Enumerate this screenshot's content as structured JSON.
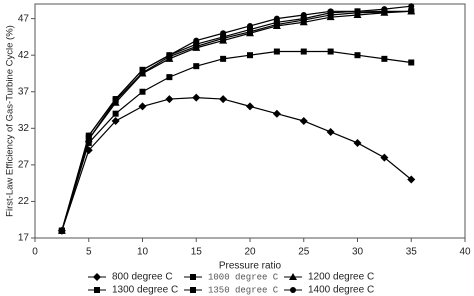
{
  "chart_data": {
    "type": "line",
    "x_label": "Pressure ratio",
    "y_label": "First-Law Efficiency of Gas-Turbine Cycle (%)",
    "x": [
      2.5,
      5,
      7.5,
      10,
      12.5,
      15,
      17.5,
      20,
      22.5,
      25,
      27.5,
      30,
      32.5,
      35
    ],
    "series": [
      {
        "name": "800 degree C",
        "color": "#000000",
        "marker": "diamond",
        "values": [
          18,
          29,
          33,
          35,
          36,
          36.2,
          36,
          35,
          34,
          33,
          31.5,
          30,
          28,
          25
        ]
      },
      {
        "name": "1000 degree C",
        "color": "#000000",
        "marker": "square",
        "values": [
          18,
          30,
          34,
          37,
          39,
          40.5,
          41.5,
          42,
          42.5,
          42.5,
          42.5,
          42,
          41.5,
          41
        ]
      },
      {
        "name": "1200 degree C",
        "color": "#000000",
        "marker": "triangle",
        "values": [
          18,
          30.5,
          35.5,
          39.5,
          41.5,
          43,
          44,
          45,
          46,
          46.5,
          47.2,
          47.5,
          47.8,
          48
        ]
      },
      {
        "name": "1300 degree C",
        "color": "#000000",
        "marker": "square",
        "values": [
          18,
          31,
          36,
          40,
          42,
          43.5,
          44.5,
          45.5,
          46.5,
          47,
          47.8,
          48,
          48,
          48
        ]
      },
      {
        "name": "1350 degree C",
        "color": "#000000",
        "marker": "square",
        "values": [
          18,
          30.5,
          35.8,
          39.6,
          41.8,
          43.2,
          44.3,
          45.2,
          46.2,
          46.8,
          47.5,
          47.8,
          47.9,
          48
        ]
      },
      {
        "name": "1400 degree C",
        "color": "#000000",
        "marker": "circle",
        "values": [
          18,
          31,
          36,
          40,
          42,
          44,
          45,
          46,
          47,
          47.5,
          48,
          48,
          48.3,
          48.7
        ]
      }
    ],
    "xlim": [
      0,
      40
    ],
    "xticks": [
      0,
      5,
      10,
      15,
      20,
      25,
      30,
      35,
      40
    ],
    "ylim": [
      17,
      49
    ],
    "yticks": [
      17,
      22,
      27,
      32,
      37,
      42,
      47
    ],
    "grid": false,
    "legend": "bottom"
  }
}
